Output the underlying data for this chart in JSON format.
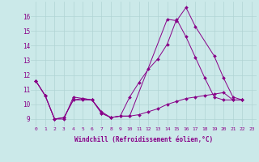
{
  "xlabel": "Windchill (Refroidissement éolien,°C)",
  "background_color": "#cbe9e9",
  "grid_color": "#b0d4d4",
  "line_color": "#880088",
  "xlim": [
    -0.5,
    23.5
  ],
  "ylim": [
    8.5,
    17.0
  ],
  "xticks": [
    0,
    1,
    2,
    3,
    4,
    5,
    6,
    7,
    8,
    9,
    10,
    11,
    12,
    13,
    14,
    15,
    16,
    17,
    18,
    19,
    20,
    21,
    22,
    23
  ],
  "yticks": [
    9,
    10,
    11,
    12,
    13,
    14,
    15,
    16
  ],
  "series": [
    {
      "x": [
        0,
        1,
        2,
        3,
        4,
        5,
        6,
        7,
        8,
        9,
        10,
        14,
        15,
        16,
        17,
        19,
        20,
        21,
        22
      ],
      "y": [
        11.6,
        10.6,
        9.0,
        9.0,
        10.5,
        10.4,
        10.3,
        9.5,
        9.1,
        9.2,
        9.2,
        15.8,
        15.7,
        16.6,
        15.3,
        13.3,
        11.8,
        10.5,
        10.3
      ]
    },
    {
      "x": [
        0,
        1,
        2,
        3,
        4,
        5,
        6,
        7,
        8,
        9,
        10,
        11,
        12,
        13,
        14,
        15,
        16,
        17,
        18,
        19,
        20,
        21,
        22
      ],
      "y": [
        11.6,
        10.6,
        9.0,
        9.1,
        10.3,
        10.4,
        10.3,
        9.4,
        9.1,
        9.2,
        10.5,
        11.5,
        12.4,
        13.1,
        14.1,
        15.8,
        14.6,
        13.2,
        11.8,
        10.5,
        10.3,
        10.3,
        10.3
      ]
    },
    {
      "x": [
        0,
        1,
        2,
        3,
        4,
        5,
        6,
        7,
        8,
        9,
        10,
        11,
        12,
        13,
        14,
        15,
        16,
        17,
        18,
        19,
        20,
        21,
        22
      ],
      "y": [
        11.6,
        10.6,
        9.0,
        9.1,
        10.3,
        10.3,
        10.3,
        9.4,
        9.1,
        9.2,
        9.2,
        9.3,
        9.5,
        9.7,
        10.0,
        10.2,
        10.4,
        10.5,
        10.6,
        10.7,
        10.8,
        10.3,
        10.3
      ]
    }
  ]
}
